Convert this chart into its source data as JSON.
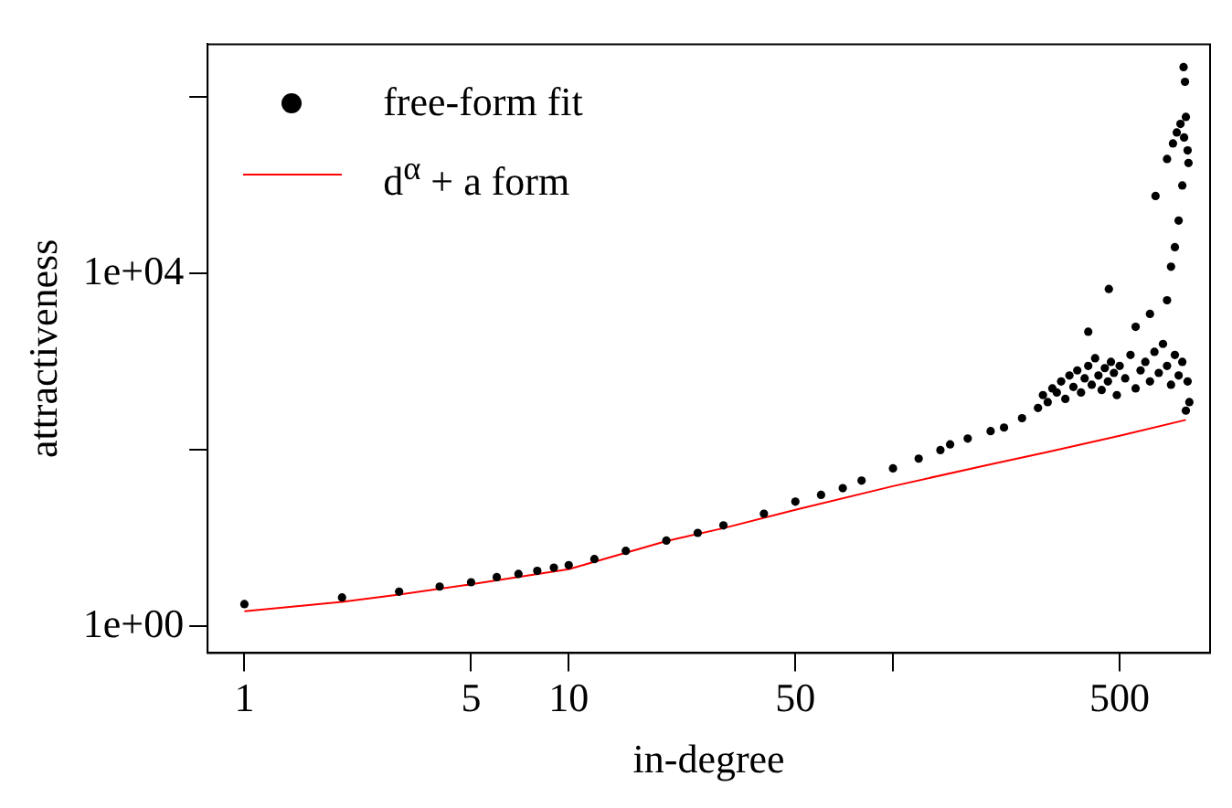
{
  "chart_data": {
    "type": "scatter",
    "xlabel": "in-degree",
    "ylabel": "attractiveness",
    "log": "xy",
    "legend": "top left",
    "line_style": "solid",
    "grid": false,
    "xlim": [
      0.77,
      950
    ],
    "xticks": [
      1,
      5,
      10,
      50,
      {
        "value": 100,
        "label": null
      },
      500
    ],
    "ylim": [
      0.5,
      4000000
    ],
    "yticks": [
      {
        "value": 1,
        "label": "1e+00"
      },
      {
        "value": 100,
        "label": null
      },
      {
        "value": 10000,
        "label": "1e+04"
      },
      {
        "value": 1000000,
        "label": null
      }
    ],
    "series": [
      {
        "name": "free-form fit",
        "marker": "circle",
        "color": "#000000",
        "x": [
          1,
          2,
          3,
          4,
          5,
          6,
          7,
          8,
          9,
          10,
          12,
          15,
          20,
          25,
          30,
          40,
          50,
          60,
          70,
          80,
          100,
          120,
          140,
          150,
          170,
          200,
          220,
          250,
          280,
          290,
          300,
          310,
          320,
          330,
          340,
          350,
          360,
          370,
          380,
          390,
          400,
          410,
          420,
          430,
          440,
          450,
          460,
          470,
          480,
          490,
          500,
          520,
          540,
          560,
          580,
          600,
          620,
          640,
          660,
          680,
          700,
          720,
          740,
          760,
          780,
          800,
          810,
          820,
          400,
          463,
          560,
          620,
          700,
          720,
          740,
          760,
          645,
          780,
          700,
          730,
          750,
          770,
          790,
          810,
          800,
          787,
          795,
          815
        ],
        "values": [
          1.79,
          2.13,
          2.48,
          2.83,
          3.17,
          3.62,
          3.94,
          4.27,
          4.64,
          4.95,
          5.8,
          7.2,
          9.4,
          11.5,
          14,
          19,
          26,
          31,
          37,
          45,
          62,
          80,
          100,
          116,
          135,
          164,
          180,
          230,
          300,
          420,
          350,
          500,
          450,
          600,
          380,
          700,
          520,
          800,
          450,
          650,
          900,
          550,
          1100,
          700,
          480,
          850,
          600,
          1000,
          750,
          420,
          900,
          650,
          1200,
          500,
          800,
          1000,
          600,
          1300,
          750,
          1600,
          900,
          550,
          1200,
          700,
          1000,
          280,
          600,
          350,
          2200,
          6700,
          2500,
          3500,
          5000,
          12000,
          20000,
          40000,
          76000,
          100000,
          200000,
          300000,
          400000,
          500000,
          350000,
          250000,
          600000,
          2200000,
          1500000,
          180000
        ]
      },
      {
        "name": "d$^{α}$ + a form",
        "type": "line",
        "marker": "none",
        "color": "#ff0000",
        "x": [
          1,
          2,
          3,
          5,
          10,
          20,
          30,
          50,
          100,
          200,
          300,
          500,
          800
        ],
        "values": [
          1.49,
          1.9,
          2.3,
          3.0,
          4.46,
          9.3,
          13,
          21,
          39,
          69,
          95,
          145,
          220
        ]
      }
    ]
  }
}
